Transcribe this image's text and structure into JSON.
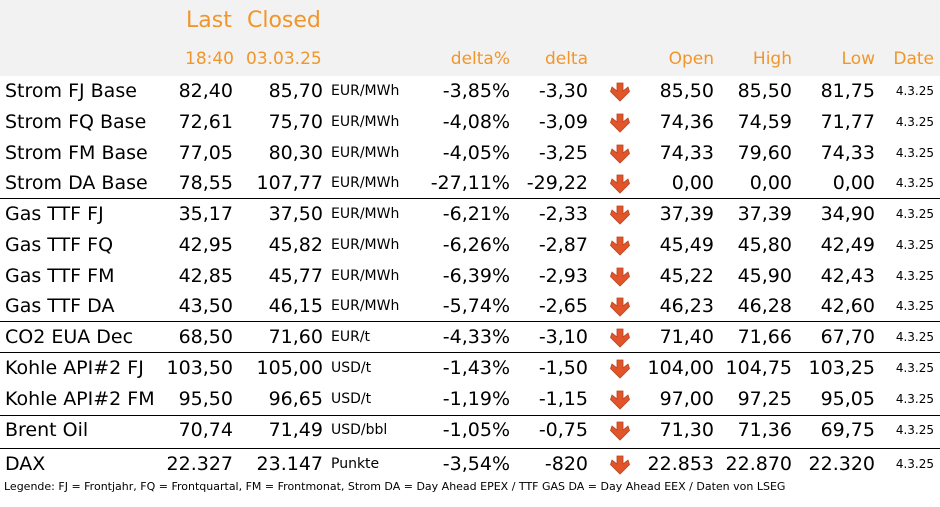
{
  "header": {
    "last": "Last",
    "closed": "Closed",
    "last_time": "18:40",
    "closed_date": "03.03.25",
    "delta_pct": "delta%",
    "delta": "delta",
    "open": "Open",
    "high": "High",
    "low": "Low",
    "date": "Date"
  },
  "colors": {
    "header_text": "#f0962b",
    "header_bg": "#f2f2f2",
    "arrow_down": "#e2542a"
  },
  "icons": {
    "trend": "arrow-down-icon"
  },
  "rows": [
    {
      "name": "Strom FJ Base",
      "last": "82,40",
      "closed": "85,70",
      "unit": "EUR/MWh",
      "delta_pct": "-3,85%",
      "delta": "-3,30",
      "open": "85,50",
      "high": "85,50",
      "low": "81,75",
      "date": "4.3.25"
    },
    {
      "name": "Strom FQ Base",
      "last": "72,61",
      "closed": "75,70",
      "unit": "EUR/MWh",
      "delta_pct": "-4,08%",
      "delta": "-3,09",
      "open": "74,36",
      "high": "74,59",
      "low": "71,77",
      "date": "4.3.25"
    },
    {
      "name": "Strom FM Base",
      "last": "77,05",
      "closed": "80,30",
      "unit": "EUR/MWh",
      "delta_pct": "-4,05%",
      "delta": "-3,25",
      "open": "74,33",
      "high": "79,60",
      "low": "74,33",
      "date": "4.3.25"
    },
    {
      "name": "Strom DA Base",
      "last": "78,55",
      "closed": "107,77",
      "unit": "EUR/MWh",
      "delta_pct": "-27,11%",
      "delta": "-29,22",
      "open": "0,00",
      "high": "0,00",
      "low": "0,00",
      "date": "4.3.25"
    },
    {
      "name": "Gas TTF FJ",
      "last": "35,17",
      "closed": "37,50",
      "unit": "EUR/MWh",
      "delta_pct": "-6,21%",
      "delta": "-2,33",
      "open": "37,39",
      "high": "37,39",
      "low": "34,90",
      "date": "4.3.25"
    },
    {
      "name": "Gas TTF FQ",
      "last": "42,95",
      "closed": "45,82",
      "unit": "EUR/MWh",
      "delta_pct": "-6,26%",
      "delta": "-2,87",
      "open": "45,49",
      "high": "45,80",
      "low": "42,49",
      "date": "4.3.25"
    },
    {
      "name": "Gas TTF FM",
      "last": "42,85",
      "closed": "45,77",
      "unit": "EUR/MWh",
      "delta_pct": "-6,39%",
      "delta": "-2,93",
      "open": "45,22",
      "high": "45,90",
      "low": "42,43",
      "date": "4.3.25"
    },
    {
      "name": "Gas TTF DA",
      "last": "43,50",
      "closed": "46,15",
      "unit": "EUR/MWh",
      "delta_pct": "-5,74%",
      "delta": "-2,65",
      "open": "46,23",
      "high": "46,28",
      "low": "42,60",
      "date": "4.3.25"
    },
    {
      "name": "CO2 EUA Dec",
      "last": "68,50",
      "closed": "71,60",
      "unit": "EUR/t",
      "delta_pct": "-4,33%",
      "delta": "-3,10",
      "open": "71,40",
      "high": "71,66",
      "low": "67,70",
      "date": "4.3.25"
    },
    {
      "name": "Kohle API#2 FJ",
      "last": "103,50",
      "closed": "105,00",
      "unit": "USD/t",
      "delta_pct": "-1,43%",
      "delta": "-1,50",
      "open": "104,00",
      "high": "104,75",
      "low": "103,25",
      "date": "4.3.25"
    },
    {
      "name": "Kohle API#2 FM",
      "last": "95,50",
      "closed": "96,65",
      "unit": "USD/t",
      "delta_pct": "-1,19%",
      "delta": "-1,15",
      "open": "97,00",
      "high": "97,25",
      "low": "95,05",
      "date": "4.3.25"
    },
    {
      "name": "Brent Oil",
      "last": "70,74",
      "closed": "71,49",
      "unit": "USD/bbl",
      "delta_pct": "-1,05%",
      "delta": "-0,75",
      "open": "71,30",
      "high": "71,36",
      "low": "69,75",
      "date": "4.3.25"
    },
    {
      "name": "DAX",
      "last": "22.327",
      "closed": "23.147",
      "unit": "Punkte",
      "delta_pct": "-3,54%",
      "delta": "-820",
      "open": "22.853",
      "high": "22.870",
      "low": "22.320",
      "date": "4.3.25"
    }
  ],
  "legend": "Legende: FJ = Frontjahr, FQ = Frontquartal, FM = Frontmonat, Strom DA = Day Ahead EPEX / TTF GAS DA = Day Ahead EEX / Daten von LSEG"
}
